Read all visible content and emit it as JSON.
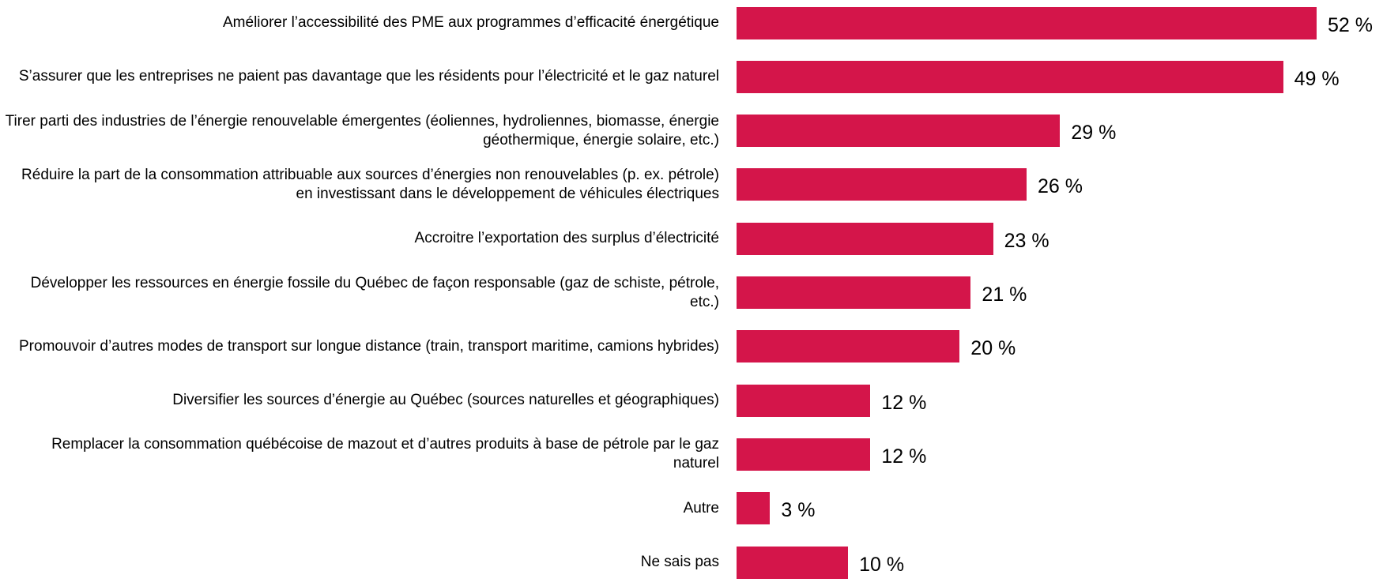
{
  "chart_data": {
    "type": "bar",
    "orientation": "horizontal",
    "color": "#d4154a",
    "categories": [
      "Améliorer l’accessibilité des PME aux programmes d’efficacité énergétique",
      "S’assurer que les entreprises ne paient pas davantage que les résidents pour l’électricité et le gaz naturel",
      "Tirer parti des industries de l’énergie renouvelable émergentes (éoliennes, hydroliennes, biomasse, énergie géothermique, énergie solaire, etc.)",
      "Réduire la part de la consommation attribuable aux sources d’énergies non renouvelables (p. ex. pétrole) en investissant dans le développement de véhicules électriques",
      "Accroitre l’exportation des surplus d’électricité",
      "Développer les ressources en énergie fossile du Québec de façon responsable (gaz de schiste, pétrole, etc.)",
      "Promouvoir d’autres modes de transport sur longue distance (train, transport maritime, camions hybrides)",
      "Diversifier les sources d’énergie au Québec (sources naturelles et géographiques)",
      "Remplacer la consommation québécoise de mazout et d’autres produits à base de pétrole par le gaz naturel",
      "Autre",
      "Ne sais pas"
    ],
    "values": [
      52,
      49,
      29,
      26,
      23,
      21,
      20,
      12,
      12,
      3,
      10
    ],
    "value_labels": [
      "52 %",
      "49 %",
      "29 %",
      "26 %",
      "23 %",
      "21 %",
      "20 %",
      "12 %",
      "12 %",
      "3 %",
      "10 %"
    ]
  }
}
